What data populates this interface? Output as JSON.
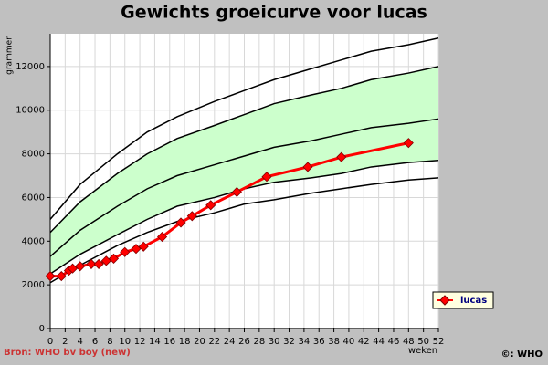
{
  "chart_data": {
    "type": "line",
    "title": "Gewichts groeicurve voor lucas",
    "x_label": "weken",
    "y_label": "grammen",
    "source": "Bron: WHO bv boy (new)",
    "copyright": "©: WHO",
    "xlim": [
      0,
      52
    ],
    "xticks": [
      0,
      2,
      4,
      6,
      8,
      10,
      12,
      14,
      16,
      18,
      20,
      22,
      24,
      26,
      28,
      30,
      32,
      34,
      36,
      38,
      40,
      42,
      44,
      46,
      48,
      50,
      52
    ],
    "ylim": [
      0,
      13500
    ],
    "yticks": [
      0,
      2000,
      4000,
      6000,
      8000,
      10000,
      12000
    ],
    "grid": true,
    "reference_x": [
      0,
      4,
      9,
      13,
      17,
      22,
      26,
      30,
      35,
      39,
      43,
      48,
      52
    ],
    "reference_lines": [
      {
        "color": "#000000",
        "values": [
          2100,
          2900,
          3800,
          4400,
          4900,
          5300,
          5700,
          5900,
          6200,
          6400,
          6600,
          6800,
          6900
        ]
      },
      {
        "color": "#000000",
        "values": [
          2500,
          3400,
          4300,
          5000,
          5600,
          6000,
          6400,
          6700,
          6900,
          7100,
          7400,
          7600,
          7700
        ]
      },
      {
        "color": "#000000",
        "values": [
          3300,
          4500,
          5600,
          6400,
          7000,
          7500,
          7900,
          8300,
          8600,
          8900,
          9200,
          9400,
          9600
        ]
      },
      {
        "color": "#000000",
        "values": [
          4400,
          5800,
          7100,
          8000,
          8700,
          9300,
          9800,
          10300,
          10700,
          11000,
          11400,
          11700,
          12000
        ]
      },
      {
        "color": "#000000",
        "values": [
          5000,
          6600,
          8000,
          9000,
          9700,
          10400,
          10900,
          11400,
          11900,
          12300,
          12700,
          13000,
          13300
        ]
      }
    ],
    "band_between": [
      1,
      3
    ],
    "band_color": "#ccffcc",
    "series": [
      {
        "name": "lucas",
        "color": "#ff0000",
        "x": [
          0,
          1.5,
          2.5,
          3,
          4,
          5.5,
          6.5,
          7.5,
          8.5,
          10,
          11.5,
          12.5,
          15,
          17.5,
          19,
          21.5,
          25,
          29,
          34.5,
          39,
          48
        ],
        "values": [
          2400,
          2400,
          2650,
          2750,
          2850,
          2950,
          2950,
          3100,
          3200,
          3500,
          3650,
          3750,
          4200,
          4850,
          5150,
          5650,
          6250,
          6950,
          7400,
          7850,
          8500
        ]
      }
    ]
  }
}
